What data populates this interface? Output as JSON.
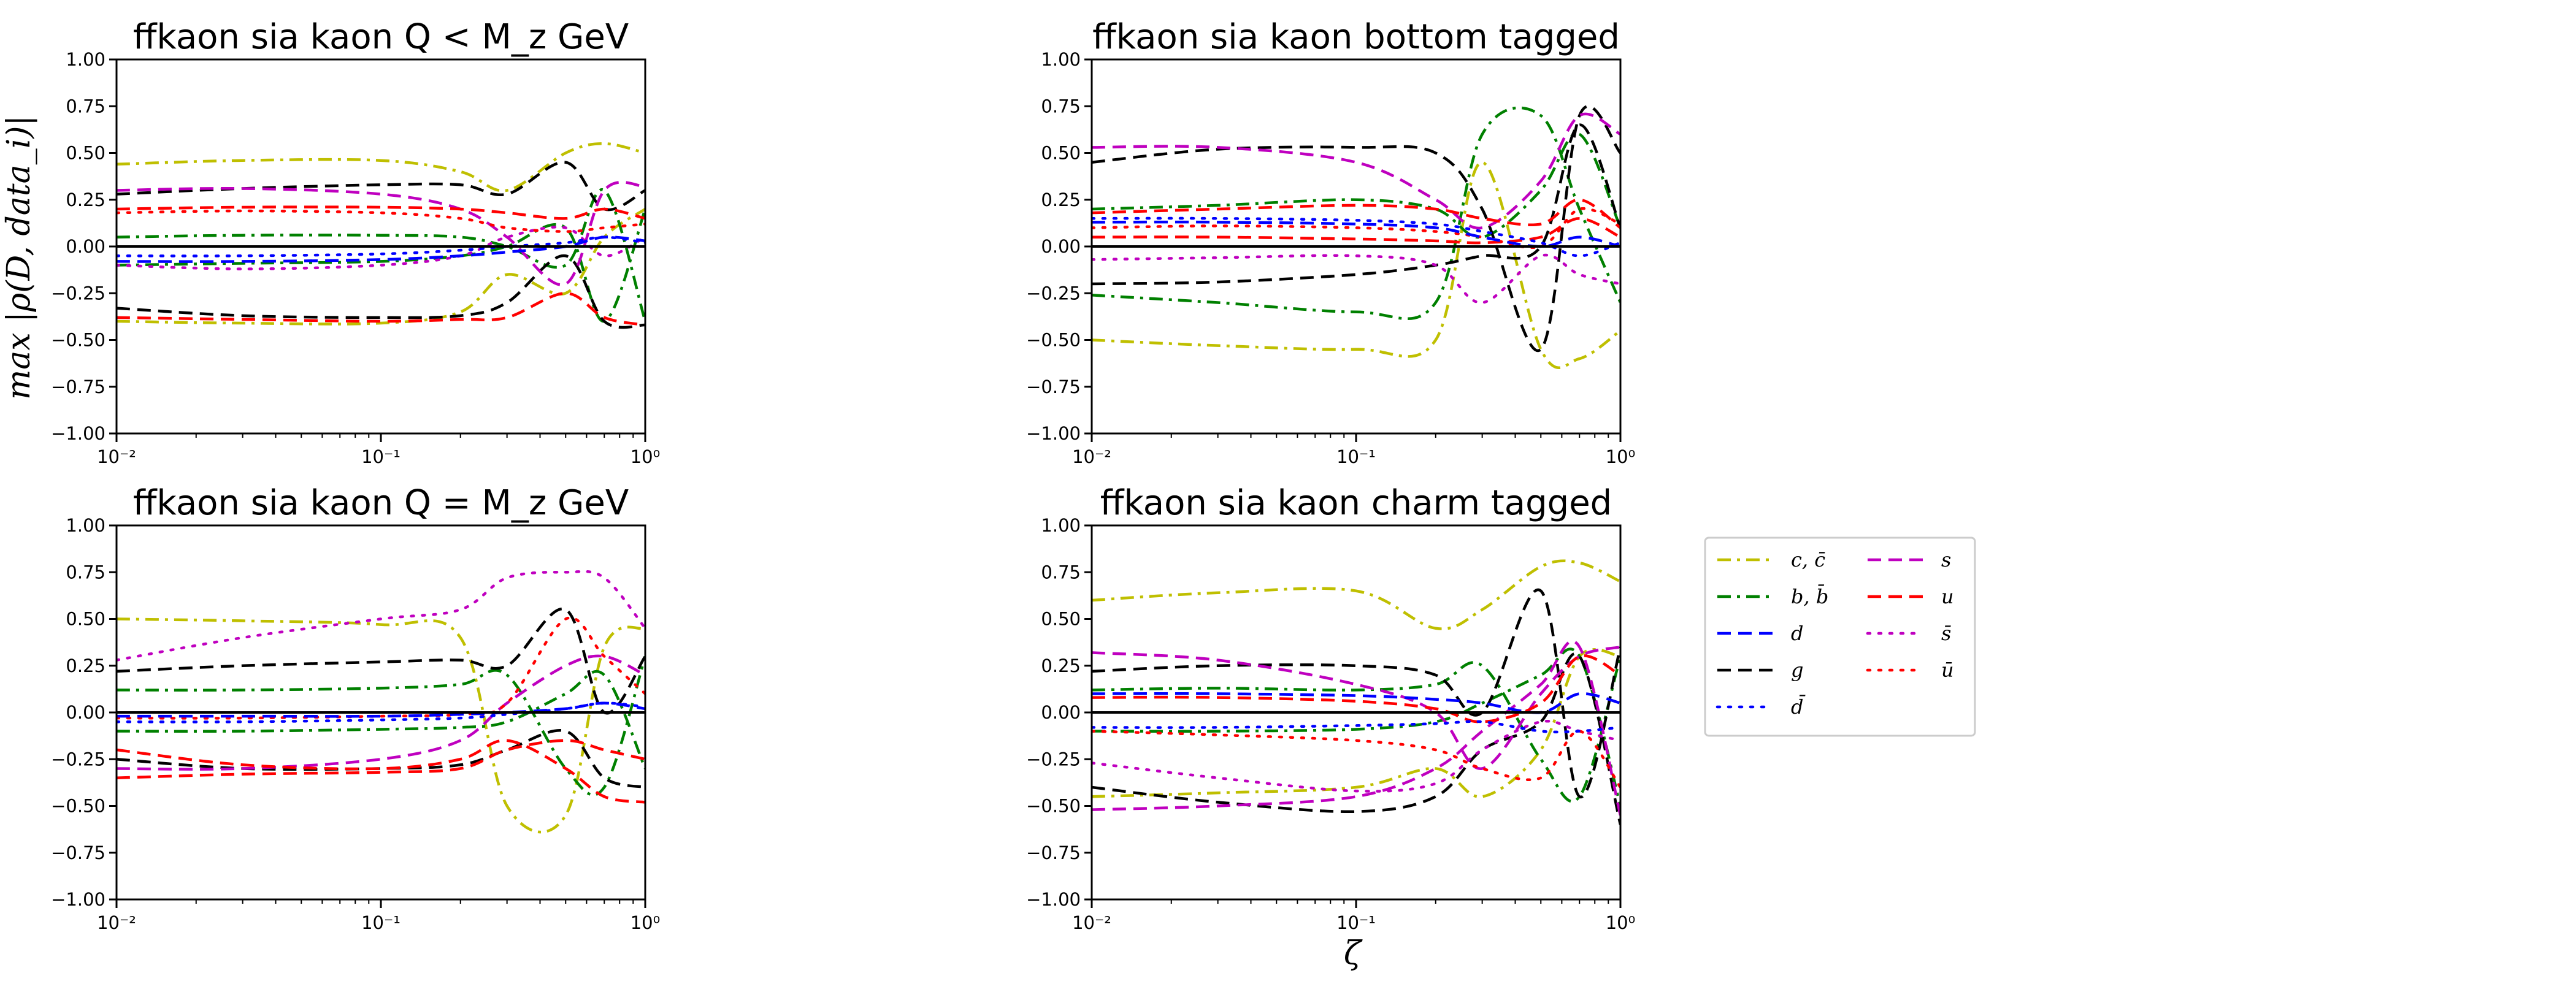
{
  "figure": {
    "ylabel": "max |ρ(D, data_i)|",
    "xlabel": "ζ"
  },
  "legend": {
    "entries": [
      {
        "label": "c, c̄",
        "color": "#bfbf00",
        "dash": "dashdot"
      },
      {
        "label": "b, b̄",
        "color": "#008000",
        "dash": "dashdot"
      },
      {
        "label": "d",
        "color": "#0000ff",
        "dash": "dashed"
      },
      {
        "label": "g",
        "color": "#000000",
        "dash": "dashed"
      },
      {
        "label": "d̄",
        "color": "#0000ff",
        "dash": "dotted"
      },
      {
        "label": "s",
        "color": "#bf00bf",
        "dash": "dashed"
      },
      {
        "label": "u",
        "color": "#ff0000",
        "dash": "dashed"
      },
      {
        "label": "s̄",
        "color": "#bf00bf",
        "dash": "dotted"
      },
      {
        "label": "ū",
        "color": "#ff0000",
        "dash": "dotted"
      }
    ]
  },
  "chart_data": [
    {
      "type": "line",
      "title": "ffkaon sia kaon Q < M_z GeV",
      "xscale": "log",
      "xlim": [
        0.01,
        1
      ],
      "ylim": [
        -1,
        1
      ],
      "xticks": [
        "10⁻²",
        "10⁻¹",
        "10⁰"
      ],
      "yticks": [
        "1.00",
        "0.75",
        "0.50",
        "0.25",
        "0.00",
        "−0.25",
        "−0.50",
        "−0.75",
        "−1.00"
      ],
      "x": [
        0.01,
        0.03,
        0.1,
        0.2,
        0.3,
        0.5,
        0.7,
        1.0
      ],
      "series": [
        {
          "color": "#bfbf00",
          "dash": "dashdot",
          "values": [
            0.44,
            0.46,
            0.46,
            0.4,
            0.3,
            0.5,
            0.55,
            0.5
          ]
        },
        {
          "color": "#bfbf00",
          "dash": "dashdot",
          "values": [
            -0.4,
            -0.41,
            -0.41,
            -0.35,
            -0.15,
            -0.25,
            0.05,
            0.2
          ]
        },
        {
          "color": "#008000",
          "dash": "dashdot",
          "values": [
            0.05,
            0.06,
            0.06,
            0.05,
            0.0,
            -0.1,
            0.3,
            -0.4
          ]
        },
        {
          "color": "#008000",
          "dash": "dashdot",
          "values": [
            -0.1,
            -0.09,
            -0.08,
            -0.05,
            0.0,
            0.1,
            -0.4,
            0.2
          ]
        },
        {
          "color": "#000000",
          "dash": "dashed",
          "values": [
            0.28,
            0.31,
            0.33,
            0.33,
            0.28,
            0.45,
            0.2,
            0.3
          ]
        },
        {
          "color": "#000000",
          "dash": "dashed",
          "values": [
            -0.33,
            -0.37,
            -0.38,
            -0.37,
            -0.3,
            -0.05,
            -0.4,
            -0.42
          ]
        },
        {
          "color": "#bf00bf",
          "dash": "dashed",
          "values": [
            0.3,
            0.31,
            0.28,
            0.2,
            0.05,
            -0.2,
            0.3,
            0.32
          ]
        },
        {
          "color": "#ff0000",
          "dash": "dashed",
          "values": [
            0.2,
            0.21,
            0.21,
            0.2,
            0.18,
            0.15,
            0.2,
            0.15
          ]
        },
        {
          "color": "#ff0000",
          "dash": "dashed",
          "values": [
            -0.38,
            -0.39,
            -0.4,
            -0.39,
            -0.38,
            -0.25,
            -0.38,
            -0.42
          ]
        },
        {
          "color": "#bf00bf",
          "dash": "dotted",
          "values": [
            -0.1,
            -0.12,
            -0.1,
            -0.05,
            0.05,
            0.1,
            -0.05,
            0.05
          ]
        },
        {
          "color": "#ff0000",
          "dash": "dotted",
          "values": [
            0.18,
            0.19,
            0.18,
            0.15,
            0.1,
            0.08,
            0.1,
            0.12
          ]
        },
        {
          "color": "#0000ff",
          "dash": "dotted",
          "values": [
            -0.05,
            -0.05,
            -0.04,
            -0.02,
            0.0,
            0.02,
            0.05,
            0.02
          ]
        },
        {
          "color": "#0000ff",
          "dash": "dashed",
          "values": [
            -0.08,
            -0.08,
            -0.07,
            -0.05,
            -0.03,
            0.0,
            0.05,
            0.03
          ]
        }
      ]
    },
    {
      "type": "line",
      "title": "ffkaon sia kaon bottom tagged",
      "xscale": "log",
      "xlim": [
        0.01,
        1
      ],
      "ylim": [
        -1,
        1
      ],
      "xticks": [
        "10⁻²",
        "10⁻¹",
        "10⁰"
      ],
      "yticks": [
        "1.00",
        "0.75",
        "0.50",
        "0.25",
        "0.00",
        "−0.25",
        "−0.50",
        "−0.75",
        "−1.00"
      ],
      "x": [
        0.01,
        0.03,
        0.1,
        0.2,
        0.3,
        0.5,
        0.7,
        1.0
      ],
      "series": [
        {
          "color": "#bfbf00",
          "dash": "dashdot",
          "values": [
            -0.5,
            -0.53,
            -0.55,
            -0.5,
            0.45,
            -0.55,
            -0.6,
            -0.45
          ]
        },
        {
          "color": "#008000",
          "dash": "dashdot",
          "values": [
            -0.26,
            -0.3,
            -0.35,
            -0.3,
            0.6,
            0.7,
            0.2,
            -0.3
          ]
        },
        {
          "color": "#008000",
          "dash": "dashdot",
          "values": [
            0.2,
            0.22,
            0.25,
            0.2,
            0.05,
            0.3,
            0.6,
            0.1
          ]
        },
        {
          "color": "#000000",
          "dash": "dashed",
          "values": [
            0.45,
            0.52,
            0.53,
            0.5,
            0.2,
            -0.55,
            0.7,
            0.5
          ]
        },
        {
          "color": "#000000",
          "dash": "dashed",
          "values": [
            -0.2,
            -0.19,
            -0.15,
            -0.1,
            -0.05,
            0.0,
            0.65,
            0.1
          ]
        },
        {
          "color": "#bf00bf",
          "dash": "dashed",
          "values": [
            0.53,
            0.53,
            0.45,
            0.25,
            0.1,
            0.35,
            0.7,
            0.6
          ]
        },
        {
          "color": "#ff0000",
          "dash": "dashed",
          "values": [
            0.18,
            0.2,
            0.22,
            0.2,
            0.15,
            0.12,
            0.25,
            0.1
          ]
        },
        {
          "color": "#ff0000",
          "dash": "dashed",
          "values": [
            0.05,
            0.05,
            0.04,
            0.03,
            0.02,
            0.05,
            0.15,
            0.05
          ]
        },
        {
          "color": "#bf00bf",
          "dash": "dotted",
          "values": [
            -0.07,
            -0.06,
            -0.05,
            -0.1,
            -0.3,
            -0.05,
            -0.15,
            -0.2
          ]
        },
        {
          "color": "#ff0000",
          "dash": "dotted",
          "values": [
            0.1,
            0.11,
            0.1,
            0.08,
            0.05,
            0.0,
            0.2,
            0.12
          ]
        },
        {
          "color": "#0000ff",
          "dash": "dotted",
          "values": [
            0.15,
            0.15,
            0.14,
            0.12,
            0.08,
            0.02,
            -0.05,
            0.02
          ]
        },
        {
          "color": "#0000ff",
          "dash": "dashed",
          "values": [
            0.13,
            0.13,
            0.12,
            0.1,
            0.05,
            0.0,
            0.05,
            0.0
          ]
        }
      ]
    },
    {
      "type": "line",
      "title": "ffkaon sia kaon Q = M_z GeV",
      "xscale": "log",
      "xlim": [
        0.01,
        1
      ],
      "ylim": [
        -1,
        1
      ],
      "xticks": [
        "10⁻²",
        "10⁻¹",
        "10⁰"
      ],
      "yticks": [
        "1.00",
        "0.75",
        "0.50",
        "0.25",
        "0.00",
        "−0.25",
        "−0.50",
        "−0.75",
        "−1.00"
      ],
      "x": [
        0.01,
        0.03,
        0.1,
        0.2,
        0.3,
        0.5,
        0.7,
        1.0
      ],
      "series": [
        {
          "color": "#bfbf00",
          "dash": "dashdot",
          "values": [
            0.5,
            0.49,
            0.47,
            0.4,
            -0.5,
            -0.55,
            0.35,
            0.45
          ]
        },
        {
          "color": "#008000",
          "dash": "dashdot",
          "values": [
            0.12,
            0.12,
            0.13,
            0.15,
            0.2,
            -0.3,
            -0.4,
            0.3
          ]
        },
        {
          "color": "#008000",
          "dash": "dashdot",
          "values": [
            -0.1,
            -0.1,
            -0.09,
            -0.08,
            -0.05,
            0.1,
            0.2,
            -0.3
          ]
        },
        {
          "color": "#000000",
          "dash": "dashed",
          "values": [
            0.22,
            0.25,
            0.27,
            0.28,
            0.25,
            0.55,
            0.0,
            0.3
          ]
        },
        {
          "color": "#000000",
          "dash": "dashed",
          "values": [
            -0.25,
            -0.3,
            -0.3,
            -0.28,
            -0.2,
            -0.1,
            -0.35,
            -0.4
          ]
        },
        {
          "color": "#bf00bf",
          "dash": "dashed",
          "values": [
            -0.3,
            -0.3,
            -0.25,
            -0.15,
            0.05,
            0.25,
            0.3,
            0.2
          ]
        },
        {
          "color": "#ff0000",
          "dash": "dashed",
          "values": [
            -0.2,
            -0.28,
            -0.3,
            -0.25,
            -0.15,
            -0.3,
            -0.45,
            -0.48
          ]
        },
        {
          "color": "#ff0000",
          "dash": "dashed",
          "values": [
            -0.35,
            -0.33,
            -0.32,
            -0.3,
            -0.2,
            -0.15,
            -0.2,
            -0.25
          ]
        },
        {
          "color": "#bf00bf",
          "dash": "dotted",
          "values": [
            0.28,
            0.4,
            0.5,
            0.55,
            0.72,
            0.75,
            0.72,
            0.45
          ]
        },
        {
          "color": "#ff0000",
          "dash": "dotted",
          "values": [
            -0.03,
            -0.03,
            -0.02,
            -0.01,
            0.05,
            0.5,
            0.3,
            0.1
          ]
        },
        {
          "color": "#0000ff",
          "dash": "dotted",
          "values": [
            -0.05,
            -0.05,
            -0.04,
            -0.03,
            -0.01,
            0.02,
            0.05,
            0.03
          ]
        },
        {
          "color": "#0000ff",
          "dash": "dashed",
          "values": [
            -0.02,
            -0.02,
            -0.02,
            -0.01,
            0.0,
            0.02,
            0.05,
            0.02
          ]
        }
      ]
    },
    {
      "type": "line",
      "title": "ffkaon sia kaon charm tagged",
      "xscale": "log",
      "xlim": [
        0.01,
        1
      ],
      "ylim": [
        -1,
        1
      ],
      "xticks": [
        "10⁻²",
        "10⁻¹",
        "10⁰"
      ],
      "yticks": [
        "1.00",
        "0.75",
        "0.50",
        "0.25",
        "0.00",
        "−0.25",
        "−0.50",
        "−0.75",
        "−1.00"
      ],
      "x": [
        0.01,
        0.03,
        0.1,
        0.2,
        0.3,
        0.5,
        0.7,
        1.0
      ],
      "series": [
        {
          "color": "#bfbf00",
          "dash": "dashdot",
          "values": [
            0.6,
            0.64,
            0.65,
            0.45,
            0.55,
            0.78,
            0.8,
            0.7
          ]
        },
        {
          "color": "#bfbf00",
          "dash": "dashdot",
          "values": [
            -0.45,
            -0.43,
            -0.4,
            -0.3,
            -0.45,
            -0.2,
            0.3,
            0.3
          ]
        },
        {
          "color": "#008000",
          "dash": "dashdot",
          "values": [
            0.12,
            0.13,
            0.12,
            0.15,
            0.25,
            -0.25,
            -0.45,
            0.3
          ]
        },
        {
          "color": "#008000",
          "dash": "dashdot",
          "values": [
            -0.1,
            -0.1,
            -0.09,
            -0.05,
            0.05,
            0.2,
            0.3,
            -0.5
          ]
        },
        {
          "color": "#000000",
          "dash": "dashed",
          "values": [
            0.22,
            0.25,
            0.25,
            0.2,
            0.0,
            0.65,
            -0.45,
            0.35
          ]
        },
        {
          "color": "#000000",
          "dash": "dashed",
          "values": [
            -0.4,
            -0.48,
            -0.53,
            -0.45,
            -0.2,
            -0.05,
            0.3,
            -0.6
          ]
        },
        {
          "color": "#bf00bf",
          "dash": "dashed",
          "values": [
            0.32,
            0.28,
            0.15,
            0.0,
            -0.3,
            0.1,
            0.3,
            0.35
          ]
        },
        {
          "color": "#bf00bf",
          "dash": "dashed",
          "values": [
            -0.52,
            -0.5,
            -0.45,
            -0.3,
            -0.1,
            0.15,
            0.35,
            -0.55
          ]
        },
        {
          "color": "#ff0000",
          "dash": "dashed",
          "values": [
            0.08,
            0.08,
            0.06,
            0.02,
            -0.05,
            0.05,
            0.3,
            0.2
          ]
        },
        {
          "color": "#bf00bf",
          "dash": "dotted",
          "values": [
            -0.27,
            -0.35,
            -0.42,
            -0.38,
            -0.2,
            -0.05,
            -0.1,
            -0.15
          ]
        },
        {
          "color": "#ff0000",
          "dash": "dotted",
          "values": [
            -0.1,
            -0.12,
            -0.15,
            -0.2,
            -0.3,
            -0.35,
            -0.1,
            -0.4
          ]
        },
        {
          "color": "#0000ff",
          "dash": "dotted",
          "values": [
            -0.08,
            -0.08,
            -0.07,
            -0.06,
            -0.05,
            -0.1,
            -0.1,
            -0.08
          ]
        },
        {
          "color": "#0000ff",
          "dash": "dashed",
          "values": [
            0.1,
            0.1,
            0.09,
            0.07,
            0.05,
            0.0,
            0.1,
            0.05
          ]
        }
      ]
    }
  ]
}
